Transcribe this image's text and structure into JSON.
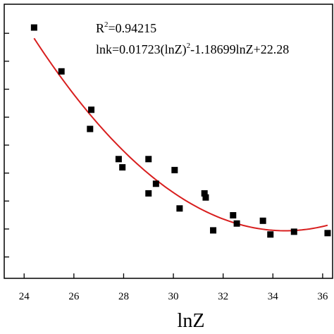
{
  "chart_data": {
    "type": "scatter",
    "xlabel": "lnZ",
    "ylabel": "",
    "title": "",
    "xlim": [
      23.2,
      36.4
    ],
    "ylim": [
      0,
      10
    ],
    "xticks": [
      24,
      26,
      28,
      30,
      32,
      34,
      36
    ],
    "xtick_labels": [
      "24",
      "26",
      "28",
      "30",
      "32",
      "34",
      "36"
    ],
    "yticks": [
      0.78,
      1.8,
      2.82,
      3.84,
      4.86,
      5.88,
      6.9,
      7.92,
      8.94
    ],
    "grid": false,
    "points": {
      "x": [
        24.4,
        25.5,
        26.7,
        26.65,
        27.8,
        27.95,
        29.0,
        29.0,
        29.3,
        30.05,
        30.25,
        31.25,
        31.3,
        31.6,
        32.4,
        32.55,
        33.6,
        33.9,
        34.85,
        36.2
      ],
      "y": [
        9.15,
        7.55,
        6.15,
        5.45,
        4.35,
        4.05,
        4.35,
        3.1,
        3.45,
        3.95,
        2.55,
        3.1,
        2.95,
        1.75,
        2.3,
        2.0,
        2.1,
        1.6,
        1.7,
        1.65
      ]
    },
    "marker_color": "#000000",
    "fit": {
      "label": "lnk=0.01723(lnZ)",
      "r2_text": "R",
      "r2_value": "=0.94215",
      "exponent": "2",
      "equation_rest": "-1.18699lnZ+22.28",
      "x_range": [
        24.4,
        36.2
      ],
      "color": "#d81e1e"
    }
  }
}
